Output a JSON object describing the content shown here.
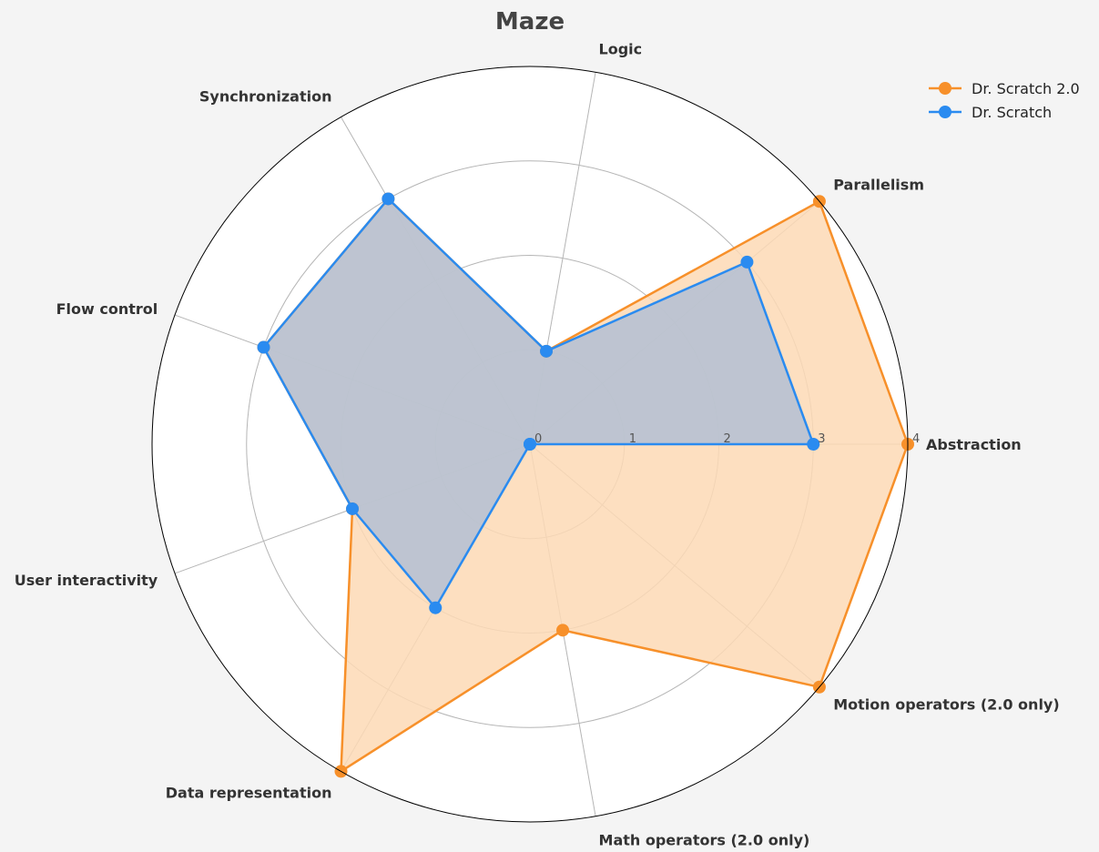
{
  "chart_data": {
    "type": "radar",
    "title": "Maze",
    "axes": [
      "Abstraction",
      "Parallelism",
      "Logic",
      "Synchronization",
      "Flow control",
      "User interactivity",
      "Data representation",
      "Math operators (2.0 only)",
      "Motion operators (2.0 only)"
    ],
    "r_ticks": [
      0,
      1,
      2,
      3,
      4
    ],
    "r_max": 4,
    "grid": true,
    "legend_position": "top-right",
    "series": [
      {
        "name": "Dr. Scratch 2.0",
        "color": "#f7902a",
        "fill": "#fdd9b5",
        "values": [
          4,
          4,
          1,
          3,
          3,
          2,
          4,
          2,
          4
        ]
      },
      {
        "name": "Dr. Scratch",
        "color": "#2a8bf0",
        "fill": "#b3c0d4",
        "values": [
          3,
          3,
          1,
          3,
          3,
          2,
          2,
          0,
          0
        ]
      }
    ]
  }
}
